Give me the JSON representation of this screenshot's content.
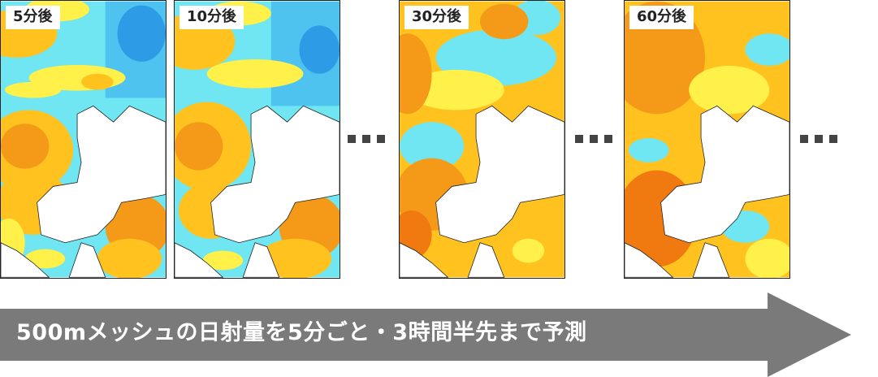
{
  "panels": [
    {
      "label": "5分後"
    },
    {
      "label": "10分後"
    },
    {
      "label": "30分後"
    },
    {
      "label": "60分後"
    }
  ],
  "arrow": {
    "text": "500mメッシュの日射量を5分ごと・3時間半先まで予測"
  },
  "colors": {
    "cyan": "#6fe6f2",
    "light_blue": "#4ec3f0",
    "blue": "#2e9be6",
    "yellow": "#fff04a",
    "gold": "#ffc21f",
    "orange": "#f59a18",
    "deep_orange": "#f07a10",
    "land": "#ffffff",
    "arrow": "#7a7a7a"
  },
  "icons": [
    "ellipsis-icon",
    "right-arrow-icon"
  ]
}
